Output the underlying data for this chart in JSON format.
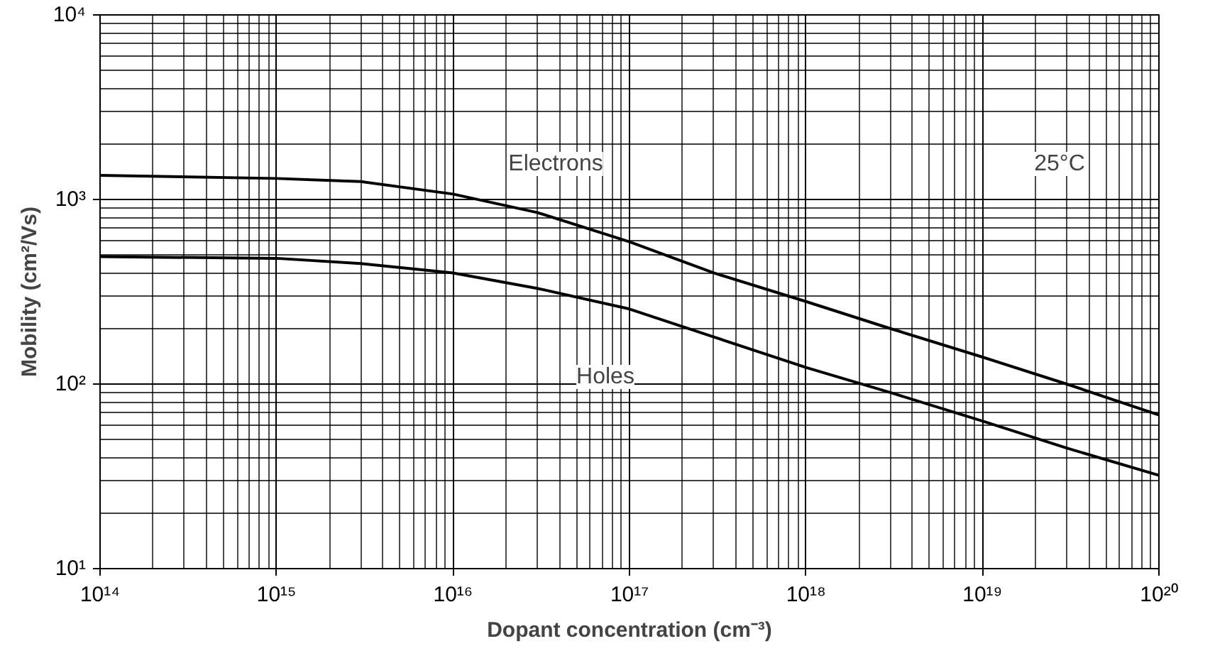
{
  "chart_data": {
    "type": "line",
    "xlabel": "Dopant concentration (cm⁻³)",
    "ylabel": "Mobility (cm²/Vs)",
    "x": [
      100000000000000.0,
      1000000000000000.0,
      3000000000000000.0,
      1e+16,
      3e+16,
      1e+17,
      3e+17,
      1e+18,
      3e+18,
      1e+19,
      3e+19,
      1e+20
    ],
    "series": [
      {
        "color": "#000000",
        "values": [
          1350,
          1300,
          1250,
          1070,
          850,
          590,
          400,
          280,
          200,
          140,
          100,
          68
        ]
      },
      {
        "color": "#000000",
        "values": [
          490,
          480,
          450,
          400,
          330,
          255,
          180,
          123,
          90,
          63,
          45,
          32
        ]
      }
    ],
    "log": "xy",
    "xlim": [
      100000000000000.0,
      1e+20
    ],
    "ylim": [
      10,
      10000
    ],
    "xticks": [
      {
        "value": 100000000000000.0,
        "label": "10¹⁴"
      },
      {
        "value": 1000000000000000.0,
        "label": "10¹⁵"
      },
      {
        "value": 1e+16,
        "label": "10¹⁶"
      },
      {
        "value": 1e+17,
        "label": "10¹⁷"
      },
      {
        "value": 1e+18,
        "label": "10¹⁸"
      },
      {
        "value": 1e+19,
        "label": "10¹⁹"
      },
      {
        "value": 1e+20,
        "label": "10²⁰"
      }
    ],
    "yticks": [
      {
        "value": 10,
        "label": "10¹"
      },
      {
        "value": 100,
        "label": "10²"
      },
      {
        "value": 1000,
        "label": "10³"
      },
      {
        "value": 10000,
        "label": "10⁴"
      }
    ],
    "grid": true,
    "line_style": "solid",
    "marker": "none",
    "annotations": [
      "Electrons",
      "Holes",
      "25°C"
    ]
  }
}
